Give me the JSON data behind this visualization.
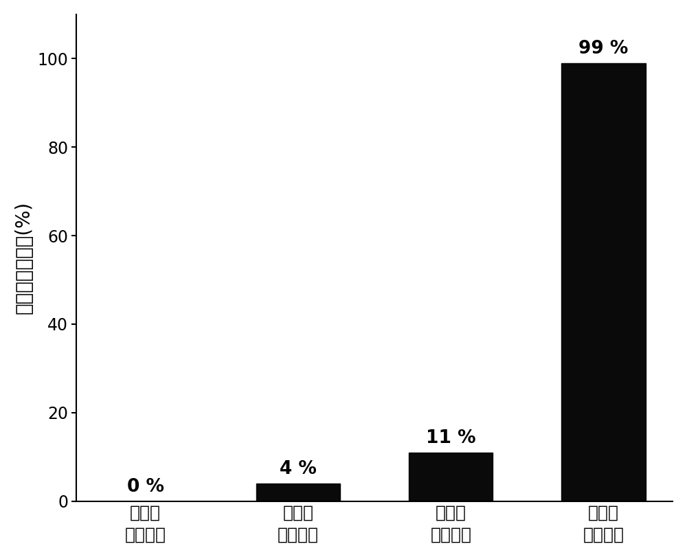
{
  "categories": [
    "无光照\n无抗菌剂",
    "有光照\n无抗菌剂",
    "无光照\n加抗菌剂",
    "有光照\n加抗菌剂"
  ],
  "values": [
    0,
    4,
    11,
    99
  ],
  "bar_color": "#0a0a0a",
  "bar_labels": [
    "0 %",
    "4 %",
    "11 %",
    "99 %"
  ],
  "ylabel": "大肠杆菌失活率(%)",
  "ylim": [
    0,
    110
  ],
  "yticks": [
    0,
    20,
    40,
    60,
    80,
    100
  ],
  "background_color": "#ffffff",
  "tick_fontsize": 17,
  "ylabel_fontsize": 20,
  "bar_label_fontsize": 19,
  "xtick_fontsize": 18,
  "bar_width": 0.55
}
